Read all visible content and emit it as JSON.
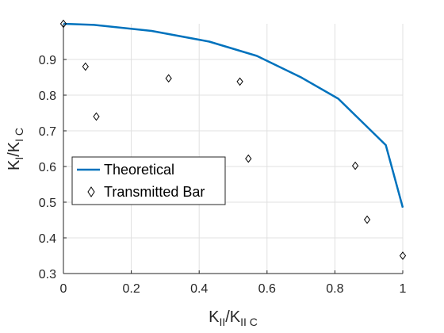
{
  "chart_data": {
    "type": "line",
    "title": "",
    "xlabel": {
      "main": "K",
      "sub1": "II",
      "mid": "/K",
      "sub2": "II C"
    },
    "ylabel": {
      "main": "K",
      "sub1": "I",
      "mid": "/K",
      "sub2": "I C"
    },
    "xlim": [
      0,
      1
    ],
    "ylim": [
      0.3,
      1.0
    ],
    "xticks": [
      0,
      0.2,
      0.4,
      0.6,
      0.8,
      1
    ],
    "xtick_labels": [
      "0",
      "0.2",
      "0.4",
      "0.6",
      "0.8",
      "1"
    ],
    "yticks": [
      0.3,
      0.4,
      0.5,
      0.6,
      0.7,
      0.8,
      0.9
    ],
    "ytick_labels": [
      "0.3",
      "0.4",
      "0.5",
      "0.6",
      "0.7",
      "0.8",
      "0.9"
    ],
    "grid": true,
    "legend_position": "center-left",
    "series": [
      {
        "name": "Theoretical",
        "kind": "line",
        "color": "#0072BD",
        "x": [
          0,
          0.09,
          0.26,
          0.43,
          0.57,
          0.7,
          0.81,
          0.95,
          1.0
        ],
        "y": [
          1.0,
          0.997,
          0.98,
          0.95,
          0.91,
          0.85,
          0.79,
          0.66,
          0.485
        ]
      },
      {
        "name": "Transmitted Bar",
        "kind": "scatter",
        "marker": "diamond",
        "color": "#000000",
        "x": [
          0,
          0.065,
          0.097,
          0.31,
          0.52,
          0.545,
          0.86,
          0.895,
          1.0
        ],
        "y": [
          1.0,
          0.88,
          0.74,
          0.847,
          0.838,
          0.622,
          0.602,
          0.451,
          0.35
        ]
      }
    ]
  }
}
